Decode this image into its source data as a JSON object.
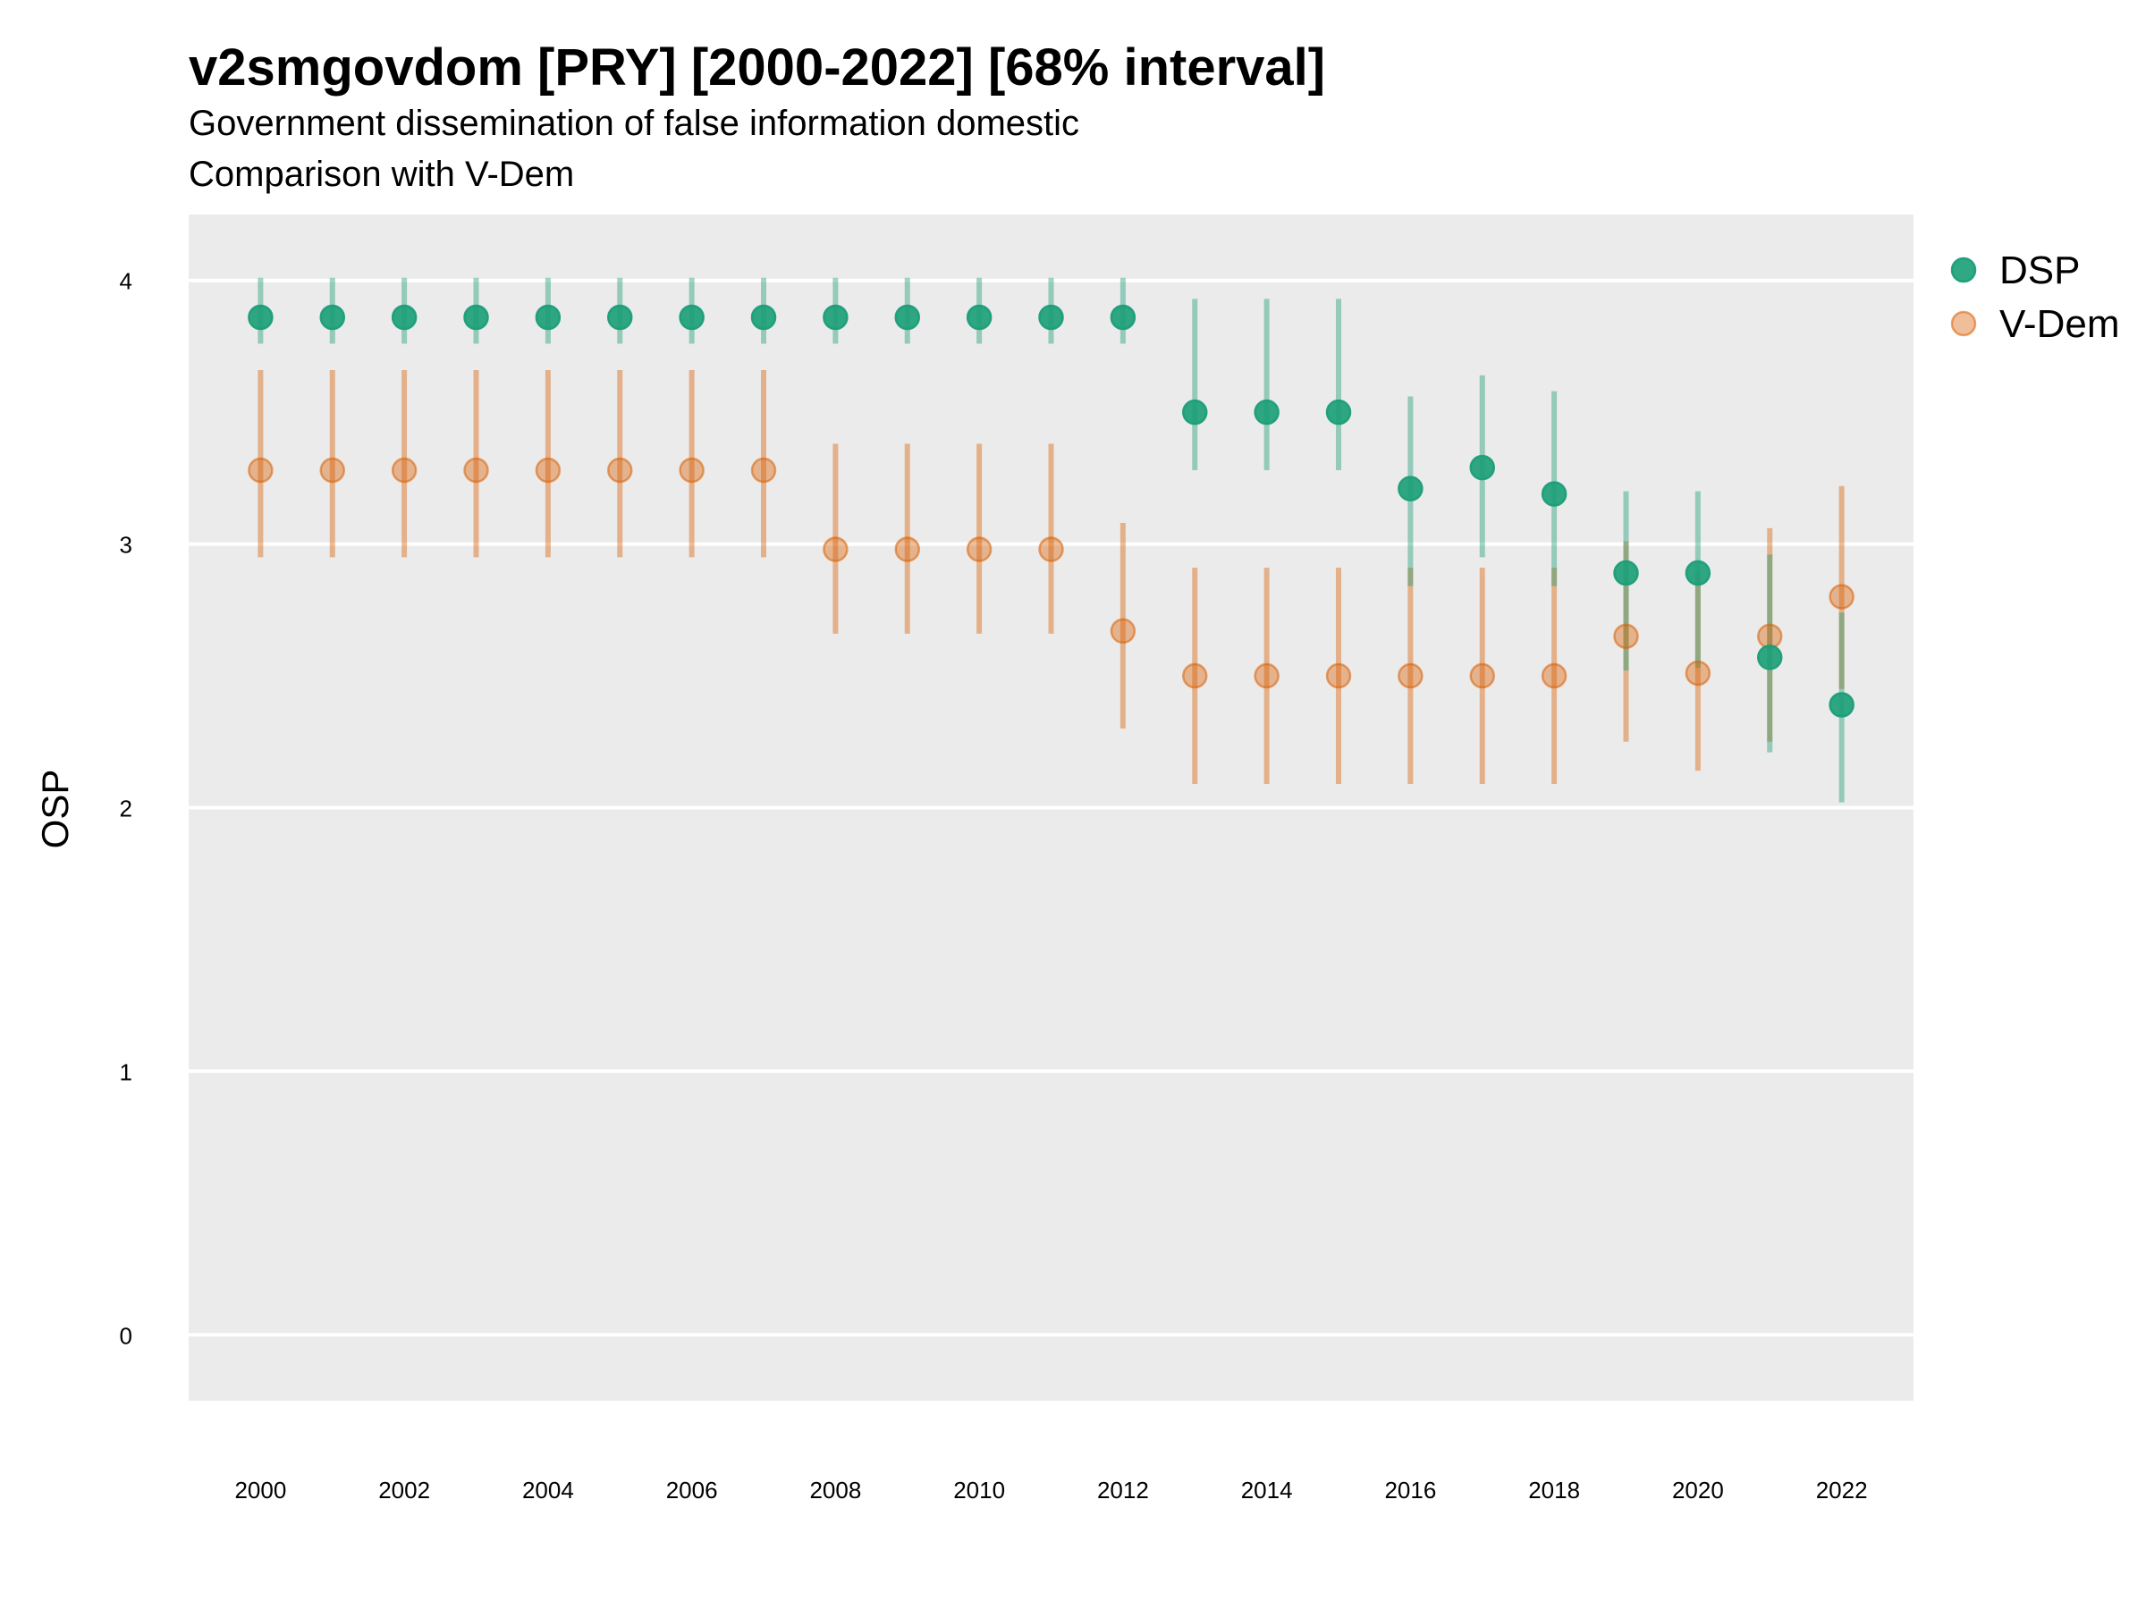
{
  "title": "v2smgovdom [PRY] [2000-2022] [68% interval]",
  "subtitle_line1": "Government dissemination of false information domestic",
  "subtitle_line2": "Comparison with V-Dem",
  "colors": {
    "DSP": "#1b9e77",
    "V-Dem": "#d95f02",
    "panel": "#ebebeb",
    "grid": "#ffffff"
  },
  "chart_data": {
    "type": "scatter",
    "ylabel": "OSP",
    "xlabel": "",
    "ylim": [
      -0.25,
      4.25
    ],
    "xlim": [
      1999,
      2023
    ],
    "y_ticks": [
      0,
      1,
      2,
      3,
      4
    ],
    "x_ticks": [
      2000,
      2002,
      2004,
      2006,
      2008,
      2010,
      2012,
      2014,
      2016,
      2018,
      2020,
      2022
    ],
    "grid": true,
    "legend_position": "right",
    "series": [
      {
        "name": "DSP",
        "color": "#1b9e77",
        "x": [
          2000,
          2001,
          2002,
          2003,
          2004,
          2005,
          2006,
          2007,
          2008,
          2009,
          2010,
          2011,
          2012,
          2013,
          2014,
          2015,
          2016,
          2017,
          2018,
          2019,
          2020,
          2021,
          2022
        ],
        "y": [
          3.86,
          3.86,
          3.86,
          3.86,
          3.86,
          3.86,
          3.86,
          3.86,
          3.86,
          3.86,
          3.86,
          3.86,
          3.86,
          3.5,
          3.5,
          3.5,
          3.21,
          3.29,
          3.19,
          2.89,
          2.89,
          2.57,
          2.39
        ],
        "lower": [
          3.76,
          3.76,
          3.76,
          3.76,
          3.76,
          3.76,
          3.76,
          3.76,
          3.76,
          3.76,
          3.76,
          3.76,
          3.76,
          3.28,
          3.28,
          3.28,
          2.84,
          2.95,
          2.84,
          2.52,
          2.53,
          2.21,
          2.02
        ],
        "upper": [
          4.01,
          4.01,
          4.01,
          4.01,
          4.01,
          4.01,
          4.01,
          4.01,
          4.01,
          4.01,
          4.01,
          4.01,
          4.01,
          3.93,
          3.93,
          3.93,
          3.56,
          3.64,
          3.58,
          3.2,
          3.2,
          2.96,
          2.74
        ]
      },
      {
        "name": "V-Dem",
        "color": "#d95f02",
        "x": [
          2000,
          2001,
          2002,
          2003,
          2004,
          2005,
          2006,
          2007,
          2008,
          2009,
          2010,
          2011,
          2012,
          2013,
          2014,
          2015,
          2016,
          2017,
          2018,
          2019,
          2020,
          2021,
          2022
        ],
        "y": [
          3.28,
          3.28,
          3.28,
          3.28,
          3.28,
          3.28,
          3.28,
          3.28,
          2.98,
          2.98,
          2.98,
          2.98,
          2.67,
          2.5,
          2.5,
          2.5,
          2.5,
          2.5,
          2.5,
          2.65,
          2.51,
          2.65,
          2.8
        ],
        "lower": [
          2.95,
          2.95,
          2.95,
          2.95,
          2.95,
          2.95,
          2.95,
          2.95,
          2.66,
          2.66,
          2.66,
          2.66,
          2.3,
          2.09,
          2.09,
          2.09,
          2.09,
          2.09,
          2.09,
          2.25,
          2.14,
          2.25,
          2.45
        ],
        "upper": [
          3.66,
          3.66,
          3.66,
          3.66,
          3.66,
          3.66,
          3.66,
          3.66,
          3.38,
          3.38,
          3.38,
          3.38,
          3.08,
          2.91,
          2.91,
          2.91,
          2.91,
          2.91,
          2.91,
          3.01,
          2.89,
          3.06,
          3.22
        ]
      }
    ]
  }
}
